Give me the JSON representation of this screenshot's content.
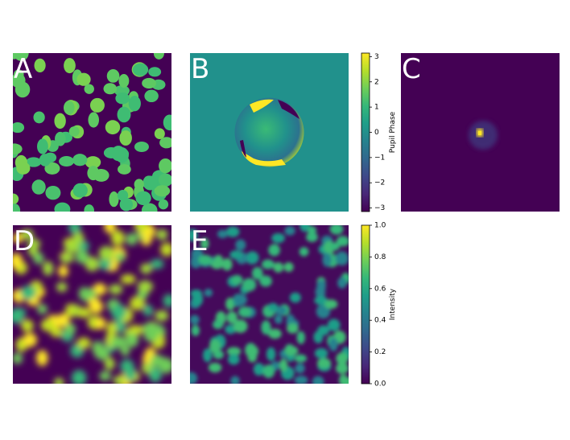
{
  "panels": [
    {
      "label": "A"
    },
    {
      "label": "B"
    },
    {
      "label": "C"
    },
    {
      "label": "D"
    },
    {
      "label": "E"
    }
  ],
  "colorbars": [
    {
      "label": "Pupil Phase",
      "colormap": "viridis",
      "lim": [
        -3.14,
        3.14
      ],
      "ticks": [
        {
          "value": -3,
          "label": "−3"
        },
        {
          "value": -2,
          "label": "−2"
        },
        {
          "value": -1,
          "label": "−1"
        },
        0,
        1,
        2,
        3
      ]
    },
    {
      "label": "Intensity",
      "colormap": "viridis",
      "lim": [
        0,
        1
      ],
      "ticks": [
        {
          "value": 0,
          "label": "0.0"
        },
        {
          "value": 0.2,
          "label": "0.2"
        },
        {
          "value": 0.4,
          "label": "0.4"
        },
        {
          "value": 0.6,
          "label": "0.6"
        },
        {
          "value": 0.8,
          "label": "0.8"
        },
        {
          "value": 1,
          "label": "1.0"
        }
      ]
    }
  ]
}
